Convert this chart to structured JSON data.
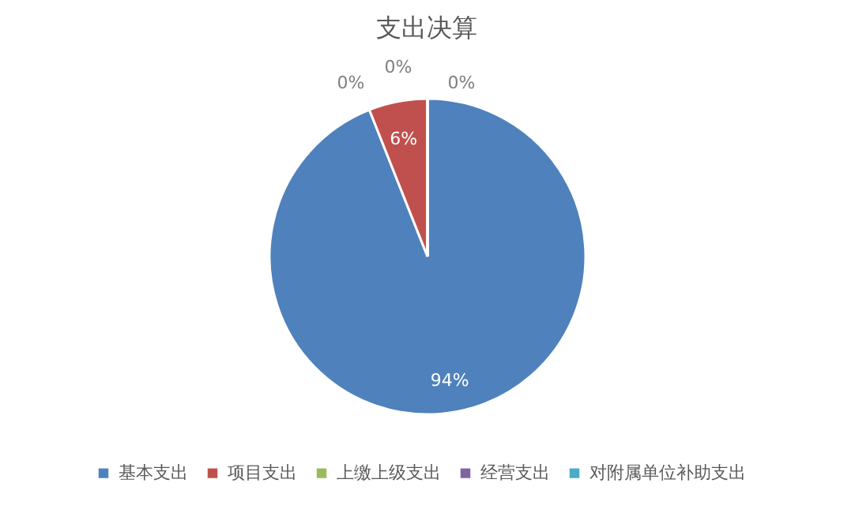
{
  "chart_data": {
    "type": "pie",
    "title": "支出决算",
    "categories": [
      "基本支出",
      "项目支出",
      "上缴上级支出",
      "经营支出",
      "对附属单位补助支出"
    ],
    "values": [
      94,
      6,
      0,
      0,
      0
    ],
    "colors": [
      "#4f81bd",
      "#c0504d",
      "#9bbb59",
      "#8064a2",
      "#4bacc6"
    ],
    "value_labels": [
      "94%",
      "6%",
      "0%",
      "0%",
      "0%"
    ],
    "legend": "bottom"
  }
}
